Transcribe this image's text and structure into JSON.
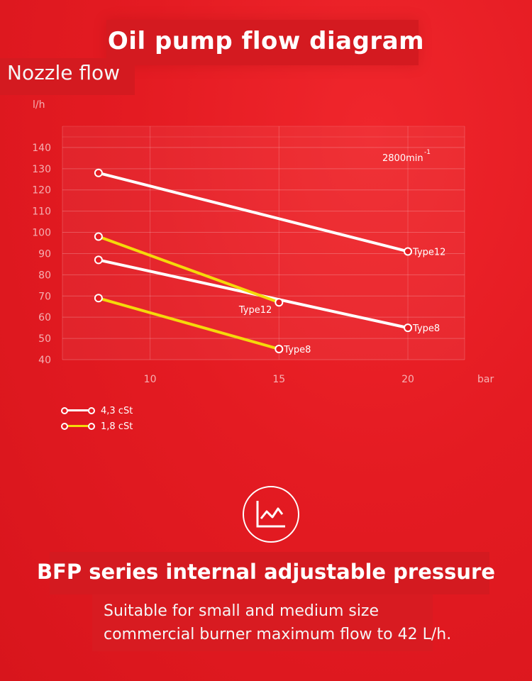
{
  "title": "Oil pump flow diagram",
  "subtitle": "Nozzle flow",
  "chart_data": {
    "type": "line",
    "ylabel": "l/h",
    "xlabel": "bar",
    "xticks": [
      10,
      15,
      20
    ],
    "yticks": [
      40,
      50,
      60,
      70,
      80,
      90,
      100,
      110,
      120,
      130,
      140
    ],
    "xlim": [
      6.6,
      22.2
    ],
    "ylim": [
      40,
      150
    ],
    "grid": true,
    "annotation": {
      "text": "2800min",
      "superscript": "-1"
    },
    "series": [
      {
        "name": "4,3 cSt",
        "label": "Type12",
        "color": "#ffffff",
        "x": [
          8,
          20
        ],
        "y": [
          128,
          91
        ]
      },
      {
        "name": "4,3 cSt",
        "label": "Type8",
        "color": "#ffffff",
        "x": [
          8,
          20
        ],
        "y": [
          87,
          55
        ]
      },
      {
        "name": "1,8 cSt",
        "label": "Type12",
        "color": "#f5d90a",
        "x": [
          8,
          15
        ],
        "y": [
          98,
          67
        ]
      },
      {
        "name": "1,8 cSt",
        "label": "Type8",
        "color": "#f5d90a",
        "x": [
          8,
          15
        ],
        "y": [
          69,
          45
        ]
      }
    ],
    "legend": [
      {
        "name": "4,3 cSt",
        "color": "#ffffff"
      },
      {
        "name": "1,8 cSt",
        "color": "#f5d90a"
      }
    ],
    "legend_position": "bottom-left"
  },
  "feature": {
    "icon": "line-chart-icon",
    "heading": "BFP series internal adjustable pressure",
    "description_line1": "Suitable for small and medium size",
    "description_line2": "commercial burner maximum flow to 42 L/h."
  }
}
